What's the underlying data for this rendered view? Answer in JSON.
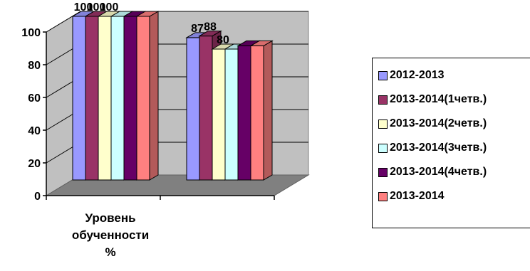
{
  "chart_data": {
    "type": "bar",
    "three_d": true,
    "categories": [
      "Уровень обученности %",
      ""
    ],
    "category_label_lines": [
      "Уровень",
      "обученности",
      "%"
    ],
    "series": [
      {
        "name": "2012-2013",
        "values": [
          100,
          87
        ],
        "color": "#9999ff"
      },
      {
        "name": "2013-2014(1четв.)",
        "values": [
          100,
          88
        ],
        "color": "#993366"
      },
      {
        "name": "2013-2014(2четв.)",
        "values": [
          100,
          80
        ],
        "color": "#ffffcc"
      },
      {
        "name": "2013-2014(3четв.)",
        "values": [
          100,
          80
        ],
        "color": "#ccffff"
      },
      {
        "name": "2013-2014(4четв.)",
        "values": [
          100,
          82
        ],
        "color": "#660066"
      },
      {
        "name": "2013-2014",
        "values": [
          100,
          82
        ],
        "color": "#ff8080"
      }
    ],
    "data_labels": [
      [
        "100",
        "100",
        "100",
        "",
        "",
        ""
      ],
      [
        "87",
        "88",
        "80",
        "",
        "",
        ""
      ]
    ],
    "yticks": [
      "0",
      "20",
      "40",
      "60",
      "80",
      "100"
    ],
    "ylim": [
      0,
      100
    ],
    "grid": true,
    "legend_position": "right"
  }
}
